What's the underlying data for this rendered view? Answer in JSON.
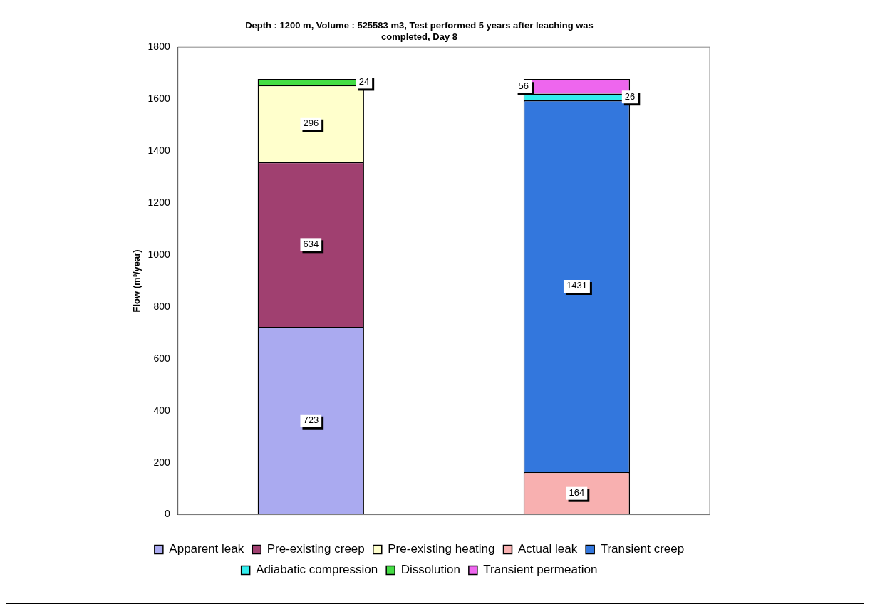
{
  "chart_data": {
    "type": "bar",
    "title": "Depth : 1200 m, Volume : 525583 m3, Test performed 5 years after leaching was completed, Day 8",
    "ylabel": "Flow (m³/year)",
    "categories": [
      null,
      null
    ],
    "stacked": true,
    "series": [
      {
        "name": "Apparent leak",
        "color": "#aaaaf0",
        "values": [
          723,
          null
        ]
      },
      {
        "name": "Pre-existing creep",
        "color": "#a04070",
        "values": [
          634,
          null
        ]
      },
      {
        "name": "Pre-existing heating",
        "color": "#ffffcc",
        "values": [
          296,
          null
        ]
      },
      {
        "name": "Actual leak",
        "color": "#f8b0b0",
        "values": [
          null,
          164
        ]
      },
      {
        "name": "Transient creep",
        "color": "#3377dd",
        "values": [
          null,
          1431
        ]
      },
      {
        "name": "Adiabatic compression",
        "color": "#33eeee",
        "values": [
          null,
          26
        ]
      },
      {
        "name": "Dissolution",
        "color": "#44dd44",
        "values": [
          24,
          null
        ]
      },
      {
        "name": "Transient permeation",
        "color": "#ee66ee",
        "values": [
          null,
          56
        ]
      }
    ],
    "ylim": [
      0,
      1800
    ],
    "yticks": [
      0,
      200,
      400,
      600,
      800,
      1000,
      1200,
      1400,
      1600,
      1800
    ],
    "data_labels": true,
    "legend": "bottom",
    "grid": false
  }
}
